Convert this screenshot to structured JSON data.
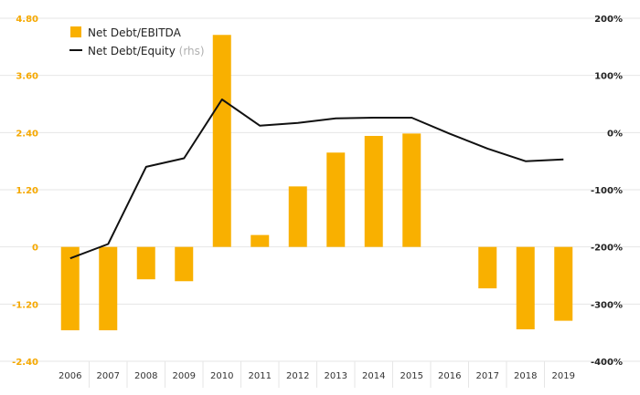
{
  "chart_data": {
    "type": "bar",
    "categories": [
      "2006",
      "2007",
      "2008",
      "2009",
      "2010",
      "2011",
      "2012",
      "2013",
      "2014",
      "2015",
      "2016",
      "2017",
      "2018",
      "2019"
    ],
    "series": [
      {
        "name": "Net Debt/EBITDA",
        "type": "bar",
        "axis": "left",
        "color": "#f9b000",
        "values": [
          -1.75,
          -1.75,
          -0.68,
          -0.72,
          4.45,
          0.25,
          1.27,
          1.98,
          2.33,
          2.38,
          null,
          -0.87,
          -1.73,
          -1.55
        ]
      },
      {
        "name": "Net Debt/Equity",
        "name_suffix": "(rhs)",
        "type": "line",
        "axis": "right",
        "color": "#111111",
        "values": [
          -220,
          -195,
          -60,
          -45,
          58,
          12,
          17,
          25,
          26,
          26,
          -2,
          -28,
          -50,
          -47
        ]
      }
    ],
    "y_left": {
      "ticks": [
        "4.80",
        "3.60",
        "2.40",
        "1.20",
        "0",
        "-1.20",
        "-2.40"
      ],
      "range": [
        -2.4,
        4.8
      ],
      "color": "#f5a800"
    },
    "y_right": {
      "ticks": [
        "200%",
        "100%",
        "0%",
        "-100%",
        "-200%",
        "-300%",
        "-400%"
      ],
      "range": [
        -400,
        200
      ],
      "unit": "%"
    },
    "grid": true,
    "legend": {
      "position": "top-left"
    }
  }
}
